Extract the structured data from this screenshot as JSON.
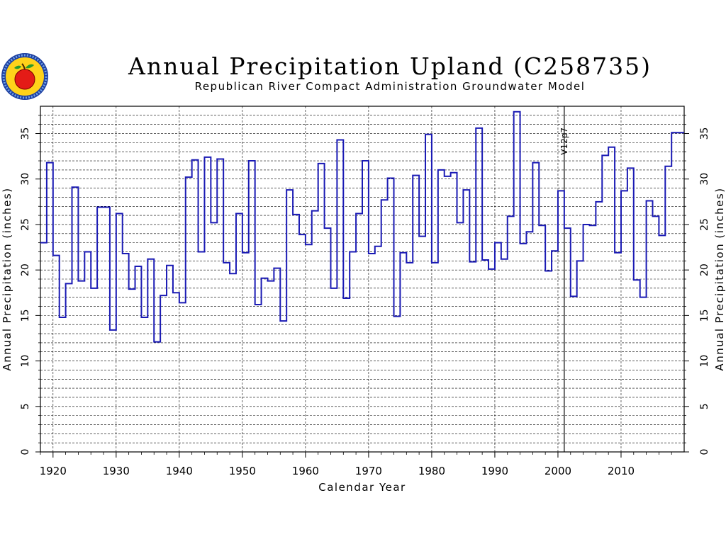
{
  "chart_data": {
    "type": "line",
    "step": true,
    "title": "Annual Precipitation Upland (C258735)",
    "subtitle": "Republican River Compact Administration Groundwater Model",
    "xlabel": "Calendar Year",
    "ylabel": "Annual Precipitation (inches)",
    "ylabel_right": "Annual Precipitation (inches)",
    "xlim": [
      1918,
      2020
    ],
    "ylim": [
      0,
      38
    ],
    "x_ticks": [
      1920,
      1930,
      1940,
      1950,
      1960,
      1970,
      1980,
      1990,
      2000,
      2010
    ],
    "y_ticks": [
      0,
      5,
      10,
      15,
      20,
      25,
      30,
      35
    ],
    "grid": true,
    "line_color": "#1a1ab4",
    "annotation": {
      "x": 2001,
      "label": "V12p7"
    },
    "series": [
      {
        "x": [
          1918,
          1919,
          1920,
          1921,
          1922,
          1923,
          1924,
          1925,
          1926,
          1927,
          1928,
          1929,
          1930,
          1931,
          1932,
          1933,
          1934,
          1935,
          1936,
          1937,
          1938,
          1939,
          1940,
          1941,
          1942,
          1943,
          1944,
          1945,
          1946,
          1947,
          1948,
          1949,
          1950,
          1951,
          1952,
          1953,
          1954,
          1955,
          1956,
          1957,
          1958,
          1959,
          1960,
          1961,
          1962,
          1963,
          1964,
          1965,
          1966,
          1967,
          1968,
          1969,
          1970,
          1971,
          1972,
          1973,
          1974,
          1975,
          1976,
          1977,
          1978,
          1979,
          1980,
          1981,
          1982,
          1983,
          1984,
          1985,
          1986,
          1987,
          1988,
          1989,
          1990,
          1991,
          1992,
          1993,
          1994,
          1995,
          1996,
          1997,
          1998,
          1999,
          2000,
          2001,
          2002,
          2003,
          2004,
          2005,
          2006,
          2007,
          2008,
          2009,
          2010,
          2011,
          2012,
          2013,
          2014,
          2015,
          2016,
          2017,
          2018,
          2019
        ],
        "values": [
          23.0,
          31.8,
          21.6,
          14.8,
          18.5,
          29.1,
          18.8,
          22.0,
          18.0,
          26.9,
          26.9,
          13.4,
          26.2,
          21.8,
          17.9,
          20.4,
          14.8,
          21.2,
          12.1,
          17.2,
          20.5,
          17.5,
          16.4,
          30.2,
          32.1,
          22.0,
          32.4,
          25.2,
          32.2,
          20.8,
          19.6,
          26.2,
          21.9,
          32.0,
          16.2,
          19.1,
          18.8,
          20.2,
          14.4,
          28.8,
          26.1,
          23.9,
          22.8,
          26.5,
          31.7,
          24.6,
          18.0,
          34.3,
          16.9,
          22.0,
          26.2,
          32.0,
          21.8,
          22.6,
          27.7,
          30.1,
          14.9,
          21.9,
          20.8,
          30.4,
          23.7,
          34.9,
          20.8,
          31.0,
          30.3,
          30.7,
          25.2,
          28.8,
          20.9,
          35.6,
          21.1,
          20.1,
          23.0,
          21.2,
          25.9,
          37.4,
          22.9,
          24.2,
          31.8,
          24.9,
          19.9,
          22.1,
          28.7,
          24.6,
          17.1,
          21.0,
          25.0,
          24.9,
          27.5,
          32.6,
          33.5,
          21.9,
          28.7,
          31.2,
          18.9,
          17.0,
          27.6,
          25.9,
          23.8,
          31.4,
          35.1,
          35.1
        ]
      }
    ]
  }
}
